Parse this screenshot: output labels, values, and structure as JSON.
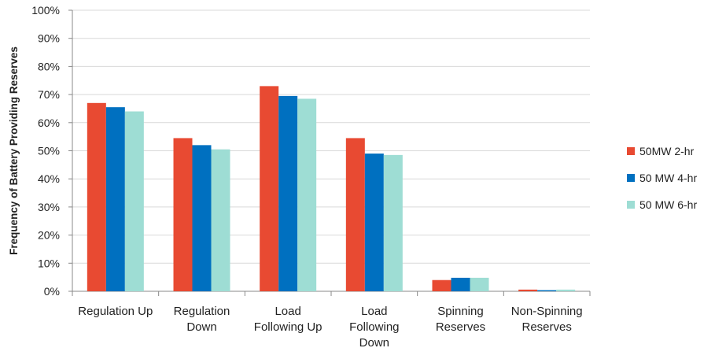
{
  "chart_data": {
    "type": "bar",
    "ylabel": "Frequency of Battery Providing Reserves",
    "xlabel": "",
    "ylim": [
      0,
      100
    ],
    "yticks": [
      "0%",
      "10%",
      "20%",
      "30%",
      "40%",
      "50%",
      "60%",
      "70%",
      "80%",
      "90%",
      "100%"
    ],
    "categories": [
      [
        "Regulation Up"
      ],
      [
        "Regulation",
        "Down"
      ],
      [
        "Load",
        "Following Up"
      ],
      [
        "Load",
        "Following",
        "Down"
      ],
      [
        "Spinning",
        "Reserves"
      ],
      [
        "Non-Spinning",
        "Reserves"
      ]
    ],
    "series": [
      {
        "name": "50MW 2-hr",
        "color": "#E84A32",
        "values": [
          67,
          54.5,
          73,
          54.5,
          4,
          0.6
        ]
      },
      {
        "name": "50 MW 4-hr",
        "color": "#0070C0",
        "values": [
          65.5,
          52,
          69.5,
          49,
          4.8,
          0.4
        ]
      },
      {
        "name": "50 MW 6-hr",
        "color": "#9EDDD4",
        "values": [
          64,
          50.5,
          68.5,
          48.5,
          4.8,
          0.6
        ]
      }
    ],
    "grid": true,
    "legend": "right"
  }
}
